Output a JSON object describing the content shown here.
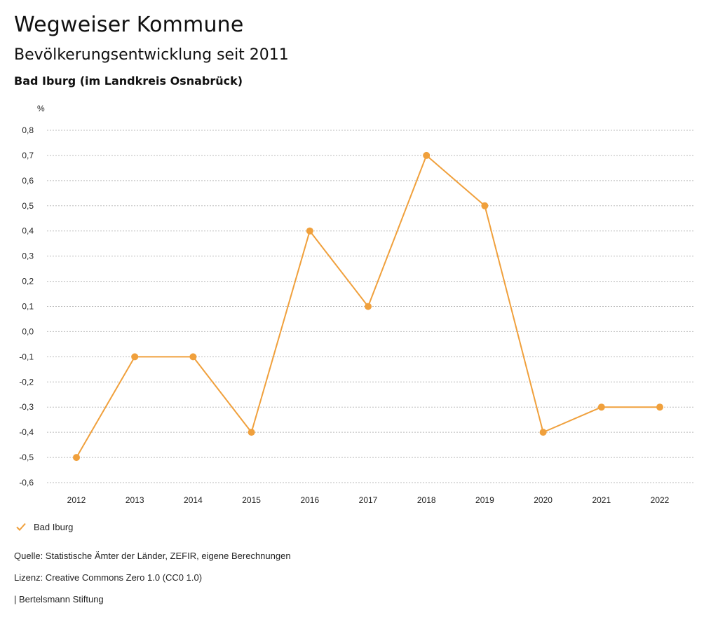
{
  "page": {
    "title": "Wegweiser Kommune",
    "subtitle": "Bevölkerungsentwicklung seit 2011",
    "region": "Bad Iburg (im Landkreis Osnabrück)"
  },
  "legend": {
    "label": "Bad Iburg",
    "icon": "check-icon"
  },
  "footer": {
    "source": "Quelle: Statistische Ämter der Länder, ZEFIR, eigene Berechnungen",
    "license": "Lizenz: Creative Commons Zero 1.0 (CC0 1.0)",
    "publisher": "| Bertelsmann Stiftung"
  },
  "colors": {
    "series": "#f0a03c",
    "grid": "#bbbbbb",
    "axis_text": "#222222"
  },
  "chart_data": {
    "type": "line",
    "title": "Bevölkerungsentwicklung seit 2011",
    "subtitle": "Bad Iburg (im Landkreis Osnabrück)",
    "ylabel": "%",
    "xlabel": "",
    "categories": [
      "2012",
      "2013",
      "2014",
      "2015",
      "2016",
      "2017",
      "2018",
      "2019",
      "2020",
      "2021",
      "2022"
    ],
    "series": [
      {
        "name": "Bad Iburg",
        "values": [
          -0.5,
          -0.1,
          -0.1,
          -0.4,
          0.4,
          0.1,
          0.7,
          0.5,
          -0.4,
          -0.3,
          -0.3
        ]
      }
    ],
    "ylim": [
      -0.6,
      0.8
    ],
    "yticks": [
      0.8,
      0.7,
      0.6,
      0.5,
      0.4,
      0.3,
      0.2,
      0.1,
      0.0,
      -0.1,
      -0.2,
      -0.3,
      -0.4,
      -0.5,
      -0.6
    ],
    "ytick_labels": [
      "0,8",
      "0,7",
      "0,6",
      "0,5",
      "0,4",
      "0,3",
      "0,2",
      "0,1",
      "0,0",
      "-0,1",
      "-0,2",
      "-0,3",
      "-0,4",
      "-0,5",
      "-0,6"
    ],
    "grid": true,
    "legend_position": "bottom-left"
  }
}
